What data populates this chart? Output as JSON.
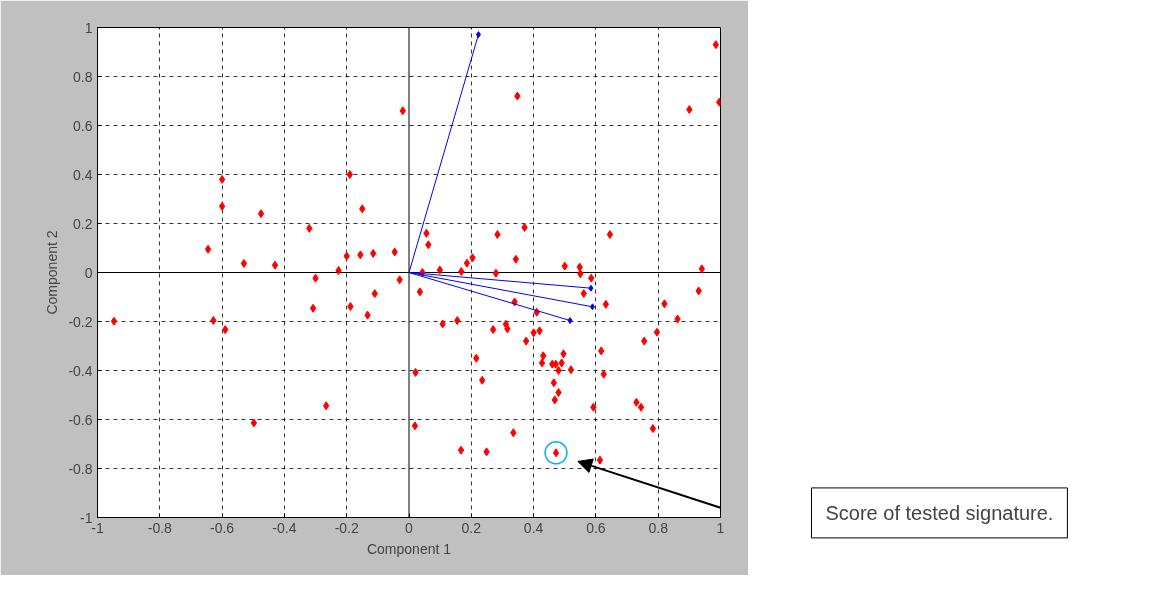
{
  "chart_data": {
    "type": "scatter",
    "xlabel": "Component 1",
    "ylabel": "Component 2",
    "xlim": [
      -1,
      1
    ],
    "ylim": [
      -1,
      1
    ],
    "xticks": [
      -1,
      -0.8,
      -0.6,
      -0.4,
      -0.2,
      0,
      0.2,
      0.4,
      0.6,
      0.8,
      1
    ],
    "yticks": [
      -1,
      -0.8,
      -0.6,
      -0.4,
      -0.2,
      0,
      0.2,
      0.4,
      0.6,
      0.8,
      1
    ],
    "grid": true,
    "marker": "diamond",
    "annotations": [
      "Score of tested signature."
    ],
    "series": [
      {
        "type": "line",
        "color": "#000000",
        "marker": "none",
        "x": [
          -1,
          1
        ],
        "values": [
          0,
          0
        ]
      },
      {
        "type": "line",
        "color": "#000000",
        "marker": "none",
        "x": [
          0,
          0
        ],
        "values": [
          -1,
          1
        ]
      },
      {
        "color": "#ff0000",
        "x": [
          -0.02,
          -0.6,
          -0.19,
          -0.6,
          -0.475,
          -0.15,
          -0.32,
          -0.645,
          -0.53,
          -0.43,
          -0.2,
          -0.156,
          -0.115,
          -0.046,
          -0.226,
          -0.3,
          -0.03,
          0.985,
          0.348,
          0.9,
          0.996,
          0.056,
          0.062,
          0.284,
          0.371,
          0.645,
          0.204,
          0.186,
          0.343,
          0.5,
          0.548,
          0.099,
          0.168,
          0.043,
          0.279,
          0.55,
          0.94,
          0.585,
          0.035,
          0.561,
          0.632,
          0.93,
          0.82,
          0.339,
          0.862,
          0.108,
          0.155,
          0.27,
          0.311,
          0.316,
          0.4,
          0.419,
          0.376,
          0.41,
          0.796,
          0.755,
          0.216,
          0.617,
          0.431,
          0.496,
          0.427,
          0.46,
          0.471,
          0.49,
          0.48,
          0.52,
          0.021,
          0.625,
          0.235,
          0.465,
          0.48,
          0.468,
          0.73,
          0.745,
          0.592,
          0.019,
          0.335,
          0.783,
          0.167,
          0.249,
          0.472,
          0.613,
          -0.11,
          -0.308,
          -0.188,
          -0.133,
          -0.947,
          -0.628,
          -0.59,
          -0.266,
          -0.498
        ],
        "values": [
          0.66,
          0.38,
          0.4,
          0.27,
          0.24,
          0.26,
          0.18,
          0.095,
          0.037,
          0.03,
          0.067,
          0.072,
          0.078,
          0.084,
          0.008,
          -0.023,
          -0.03,
          0.93,
          0.72,
          0.665,
          0.695,
          0.16,
          0.113,
          0.155,
          0.184,
          0.155,
          0.06,
          0.038,
          0.054,
          0.026,
          0.022,
          0.01,
          0.004,
          0.0,
          -0.003,
          -0.005,
          0.015,
          -0.023,
          -0.079,
          -0.086,
          -0.13,
          -0.075,
          -0.128,
          -0.12,
          -0.19,
          -0.21,
          -0.196,
          -0.233,
          -0.211,
          -0.23,
          -0.246,
          -0.238,
          -0.28,
          -0.162,
          -0.244,
          -0.28,
          -0.35,
          -0.32,
          -0.34,
          -0.332,
          -0.369,
          -0.374,
          -0.374,
          -0.369,
          -0.4,
          -0.397,
          -0.408,
          -0.415,
          -0.44,
          -0.45,
          -0.49,
          -0.52,
          -0.53,
          -0.55,
          -0.55,
          -0.626,
          -0.654,
          -0.637,
          -0.725,
          -0.732,
          -0.736,
          -0.766,
          -0.086,
          -0.146,
          -0.139,
          -0.174,
          -0.199,
          -0.196,
          -0.233,
          -0.544,
          -0.614
        ]
      },
      {
        "type": "line",
        "color": "#0000ff",
        "marker": "diamond",
        "x": [
          0,
          0.223
        ],
        "values": [
          0,
          0.971
        ]
      },
      {
        "type": "line",
        "color": "#0000ff",
        "marker": "diamond",
        "x": [
          0,
          0.584
        ],
        "values": [
          0,
          -0.064
        ]
      },
      {
        "type": "line",
        "color": "#0000ff",
        "marker": "diamond",
        "x": [
          0,
          0.589
        ],
        "values": [
          0,
          -0.14
        ]
      },
      {
        "type": "line",
        "color": "#0000ff",
        "marker": "diamond",
        "x": [
          0,
          0.517
        ],
        "values": [
          0,
          -0.196
        ]
      }
    ]
  }
}
